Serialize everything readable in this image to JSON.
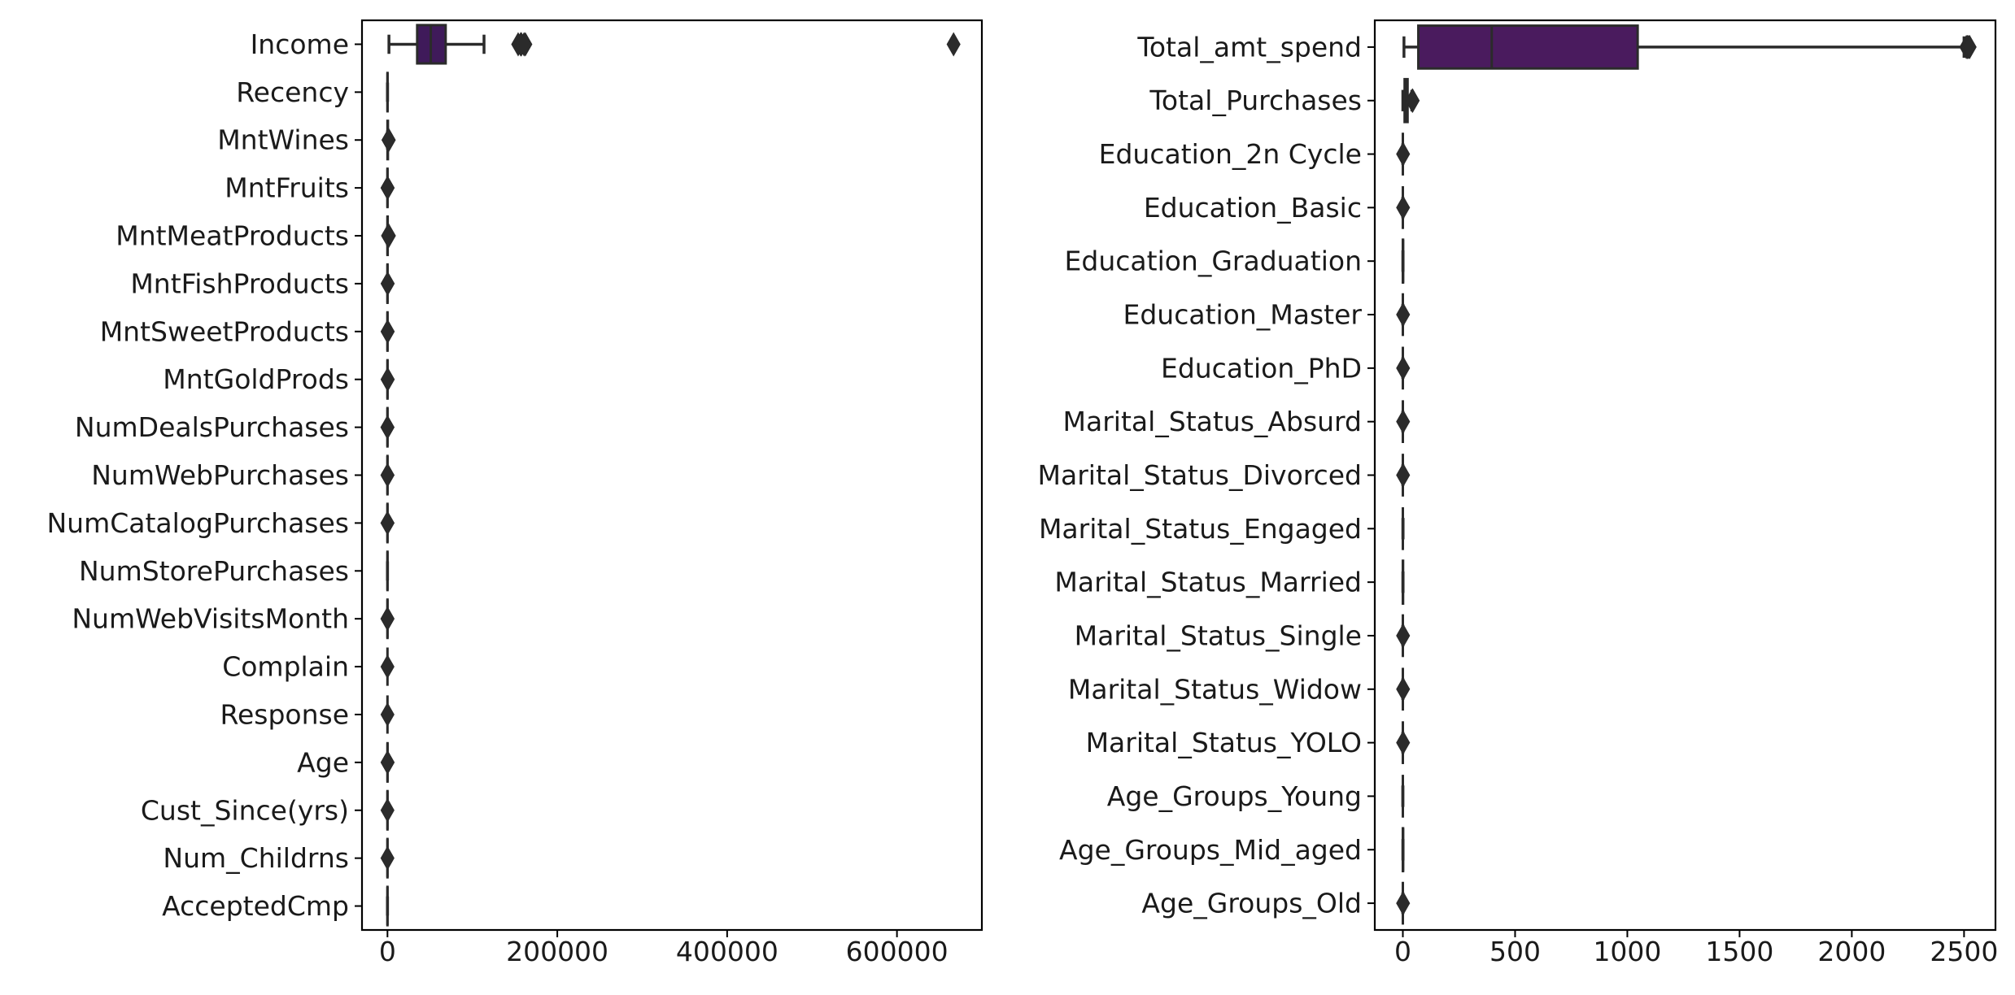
{
  "chart_data": [
    {
      "type": "boxplot",
      "orientation": "horizontal",
      "color": "#3f1a5a",
      "line_color": "#2b2b2b",
      "xlim": [
        -30000,
        700000
      ],
      "xticks": [
        0,
        200000,
        400000,
        600000
      ],
      "xtick_labels": [
        "0",
        "200000",
        "400000",
        "600000"
      ],
      "categories": [
        "Income",
        "Recency",
        "MntWines",
        "MntFruits",
        "MntMeatProducts",
        "MntFishProducts",
        "MntSweetProducts",
        "MntGoldProds",
        "NumDealsPurchases",
        "NumWebPurchases",
        "NumCatalogPurchases",
        "NumStorePurchases",
        "NumWebVisitsMonth",
        "Complain",
        "Response",
        "Age",
        "Cust_Since(yrs)",
        "Num_Childrns",
        "AcceptedCmp"
      ],
      "boxes": [
        {
          "q1": 35000,
          "median": 51000,
          "q3": 68500,
          "whisker_low": 1730,
          "whisker_high": 113700,
          "outliers": [
            153900,
            156900,
            157100,
            157700,
            160800,
            162400,
            666666
          ]
        },
        {
          "q1": 24,
          "median": 49,
          "q3": 74,
          "whisker_low": 0,
          "whisker_high": 99,
          "outliers": []
        },
        {
          "q1": 24,
          "median": 174,
          "q3": 505,
          "whisker_low": 0,
          "whisker_high": 1227,
          "outliers": [
            1253,
            1285,
            1315,
            1349,
            1396,
            1493
          ]
        },
        {
          "q1": 1,
          "median": 8,
          "q3": 33,
          "whisker_low": 0,
          "whisker_high": 81,
          "outliers": [
            99,
            120,
            150,
            199
          ]
        },
        {
          "q1": 16,
          "median": 67,
          "q3": 232,
          "whisker_low": 0,
          "whisker_high": 556,
          "outliers": [
            650,
            800,
            984,
            1725
          ]
        },
        {
          "q1": 3,
          "median": 12,
          "q3": 50,
          "whisker_low": 0,
          "whisker_high": 120,
          "outliers": [
            150,
            200,
            259
          ]
        },
        {
          "q1": 1,
          "median": 8,
          "q3": 33,
          "whisker_low": 0,
          "whisker_high": 81,
          "outliers": [
            120,
            198,
            263
          ]
        },
        {
          "q1": 9,
          "median": 24,
          "q3": 56,
          "whisker_low": 0,
          "whisker_high": 126,
          "outliers": [
            150,
            200,
            321
          ]
        },
        {
          "q1": 1,
          "median": 2,
          "q3": 3,
          "whisker_low": 0,
          "whisker_high": 6,
          "outliers": [
            7,
            10,
            15
          ]
        },
        {
          "q1": 2,
          "median": 4,
          "q3": 6,
          "whisker_low": 0,
          "whisker_high": 11,
          "outliers": [
            23,
            25,
            27
          ]
        },
        {
          "q1": 0,
          "median": 2,
          "q3": 4,
          "whisker_low": 0,
          "whisker_high": 10,
          "outliers": [
            11,
            22,
            28
          ]
        },
        {
          "q1": 3,
          "median": 5,
          "q3": 8,
          "whisker_low": 0,
          "whisker_high": 13,
          "outliers": []
        },
        {
          "q1": 3,
          "median": 6,
          "q3": 7,
          "whisker_low": 0,
          "whisker_high": 10,
          "outliers": [
            13,
            17,
            20
          ]
        },
        {
          "q1": 0,
          "median": 0,
          "q3": 0,
          "whisker_low": 0,
          "whisker_high": 0,
          "outliers": [
            1
          ]
        },
        {
          "q1": 0,
          "median": 0,
          "q3": 0,
          "whisker_low": 0,
          "whisker_high": 0,
          "outliers": [
            1
          ]
        },
        {
          "q1": 44,
          "median": 51,
          "q3": 62,
          "whisker_low": 24,
          "whisker_high": 79,
          "outliers": [
            121,
            122,
            128
          ]
        },
        {
          "q1": 9,
          "median": 10,
          "q3": 10,
          "whisker_low": 9,
          "whisker_high": 11,
          "outliers": [
            12
          ]
        },
        {
          "q1": 0,
          "median": 1,
          "q3": 1,
          "whisker_low": 0,
          "whisker_high": 2,
          "outliers": [
            3
          ]
        },
        {
          "q1": 0,
          "median": 0,
          "q3": 1,
          "whisker_low": 0,
          "whisker_high": 4,
          "outliers": []
        }
      ]
    },
    {
      "type": "boxplot",
      "orientation": "horizontal",
      "color": "#4a1b5e",
      "line_color": "#2b2b2b",
      "xlim": [
        -125,
        2640
      ],
      "xticks": [
        0,
        500,
        1000,
        1500,
        2000,
        2500
      ],
      "xtick_labels": [
        "0",
        "500",
        "1000",
        "1500",
        "2000",
        "2500"
      ],
      "categories": [
        "Total_amt_spend",
        "Total_Purchases",
        "Education_2n Cycle",
        "Education_Basic",
        "Education_Graduation",
        "Education_Master",
        "Education_PhD",
        "Marital_Status_Absurd",
        "Marital_Status_Divorced",
        "Marital_Status_Engaged",
        "Marital_Status_Married",
        "Marital_Status_Single",
        "Marital_Status_Widow",
        "Marital_Status_YOLO",
        "Age_Groups_Young",
        "Age_Groups_Mid_aged",
        "Age_Groups_Old"
      ],
      "boxes": [
        {
          "q1": 69,
          "median": 396,
          "q3": 1046,
          "whisker_low": 5,
          "whisker_high": 2500,
          "outliers": [
            2510,
            2515,
            2520,
            2525
          ]
        },
        {
          "q1": 8,
          "median": 15,
          "q3": 21,
          "whisker_low": 0,
          "whisker_high": 40,
          "outliers": [
            42,
            43,
            44
          ]
        },
        {
          "q1": 0,
          "median": 0,
          "q3": 0,
          "whisker_low": 0,
          "whisker_high": 0,
          "outliers": [
            1
          ]
        },
        {
          "q1": 0,
          "median": 0,
          "q3": 0,
          "whisker_low": 0,
          "whisker_high": 0,
          "outliers": [
            1
          ]
        },
        {
          "q1": 0,
          "median": 1,
          "q3": 1,
          "whisker_low": 0,
          "whisker_high": 1,
          "outliers": []
        },
        {
          "q1": 0,
          "median": 0,
          "q3": 0,
          "whisker_low": 0,
          "whisker_high": 0,
          "outliers": [
            1
          ]
        },
        {
          "q1": 0,
          "median": 0,
          "q3": 0,
          "whisker_low": 0,
          "whisker_high": 0,
          "outliers": [
            1
          ]
        },
        {
          "q1": 0,
          "median": 0,
          "q3": 0,
          "whisker_low": 0,
          "whisker_high": 0,
          "outliers": [
            1
          ]
        },
        {
          "q1": 0,
          "median": 0,
          "q3": 0,
          "whisker_low": 0,
          "whisker_high": 0,
          "outliers": [
            1
          ]
        },
        {
          "q1": 0,
          "median": 0,
          "q3": 0,
          "whisker_low": 0,
          "whisker_high": 1,
          "outliers": []
        },
        {
          "q1": 0,
          "median": 0,
          "q3": 1,
          "whisker_low": 0,
          "whisker_high": 1,
          "outliers": []
        },
        {
          "q1": 0,
          "median": 0,
          "q3": 0,
          "whisker_low": 0,
          "whisker_high": 0,
          "outliers": [
            1
          ]
        },
        {
          "q1": 0,
          "median": 0,
          "q3": 0,
          "whisker_low": 0,
          "whisker_high": 0,
          "outliers": [
            1
          ]
        },
        {
          "q1": 0,
          "median": 0,
          "q3": 0,
          "whisker_low": 0,
          "whisker_high": 0,
          "outliers": [
            1
          ]
        },
        {
          "q1": 0,
          "median": 0,
          "q3": 0,
          "whisker_low": 0,
          "whisker_high": 0,
          "outliers": []
        },
        {
          "q1": 0,
          "median": 1,
          "q3": 1,
          "whisker_low": 0,
          "whisker_high": 1,
          "outliers": []
        },
        {
          "q1": 0,
          "median": 0,
          "q3": 0,
          "whisker_low": 0,
          "whisker_high": 0,
          "outliers": [
            1
          ]
        }
      ]
    }
  ]
}
